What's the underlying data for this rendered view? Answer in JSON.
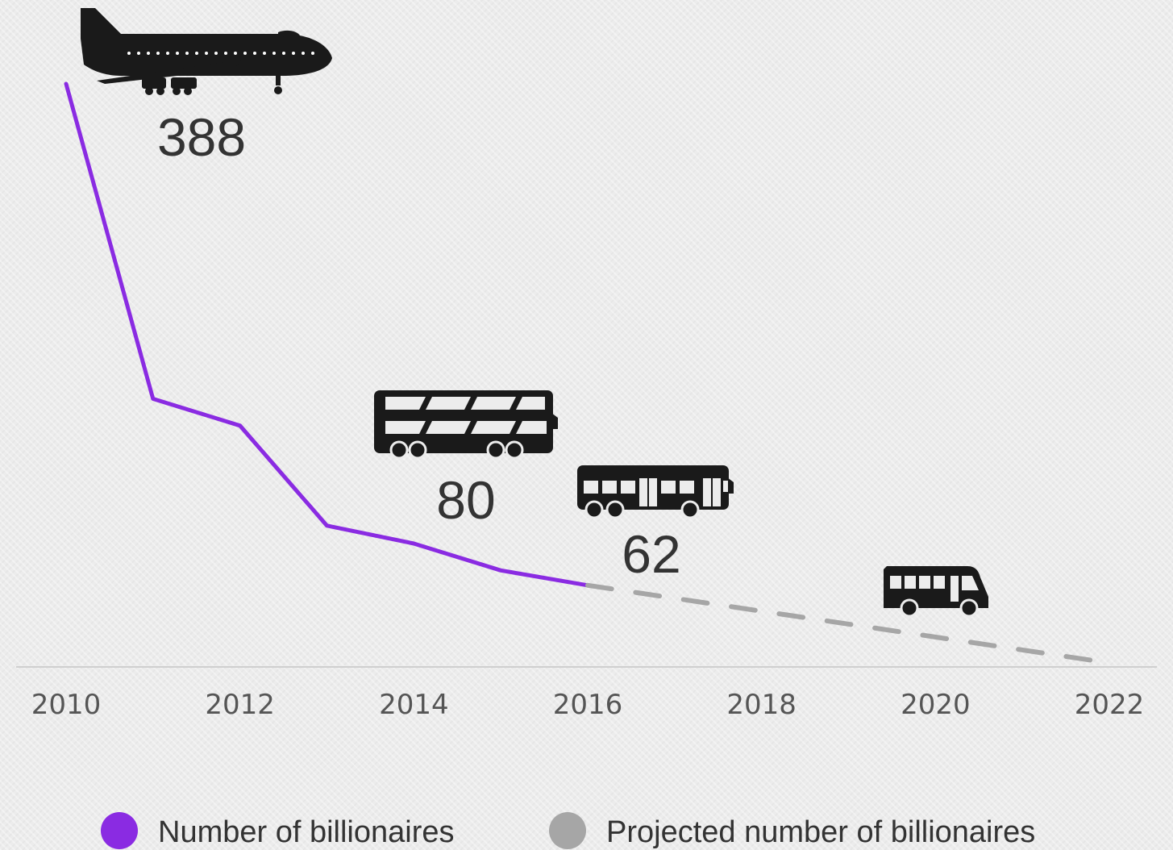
{
  "chart_data": {
    "type": "line",
    "title": "",
    "xlabel": "",
    "ylabel": "",
    "xlim": [
      2010,
      2022
    ],
    "ylim": [
      0,
      388
    ],
    "x_ticks": [
      "2010",
      "2012",
      "2014",
      "2016",
      "2018",
      "2020",
      "2022"
    ],
    "series": [
      {
        "name": "Number of billionaires",
        "color": "#8a2be2",
        "style": "solid",
        "x": [
          2010,
          2011,
          2012,
          2013,
          2014,
          2015,
          2016
        ],
        "values": [
          388,
          177,
          159,
          92,
          80,
          62,
          52
        ]
      },
      {
        "name": "Projected number of billionaires",
        "color": "#a6a6a6",
        "style": "dashed",
        "x": [
          2016,
          2022
        ],
        "values": [
          52,
          0
        ]
      }
    ],
    "annotations": [
      {
        "text": "388",
        "icon": "airplane-icon"
      },
      {
        "text": "80",
        "icon": "double-decker-bus-icon"
      },
      {
        "text": "62",
        "icon": "bus-icon"
      },
      {
        "text": "",
        "icon": "minibus-icon"
      }
    ],
    "grid": false,
    "legend_position": "bottom"
  }
}
